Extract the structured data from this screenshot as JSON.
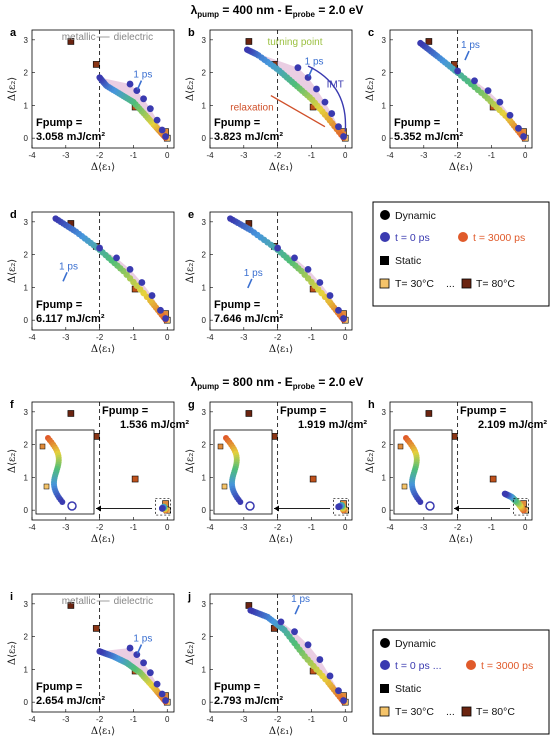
{
  "sections": [
    {
      "title": "λpump = 400 nm - Eprobe =  2.0 eV",
      "title_parts": {
        "lam": "λ",
        "lam_sub": "pump",
        "lam_val": " = 400 nm - E",
        "e_sub": "probe",
        "e_val": " =  2.0 eV"
      }
    },
    {
      "title": "λpump = 800 nm - Eprobe =  2.0 eV",
      "title_parts": {
        "lam": "λ",
        "lam_sub": "pump",
        "lam_val": " = 800 nm - E",
        "e_sub": "probe",
        "e_val": " =  2.0 eV"
      }
    }
  ],
  "axes": {
    "xlabel": "Δ⟨ε₁⟩",
    "ylabel": "Δ⟨ε₂⟩",
    "xlim": [
      -4,
      0.2
    ],
    "ylim": [
      -0.3,
      3.3
    ],
    "xticks": [
      "-4",
      "-3",
      "-2",
      "-1",
      "0"
    ],
    "yticks": [
      "0",
      "1",
      "2",
      "3"
    ],
    "boundary_x": -2
  },
  "legend": {
    "dynamic": "Dynamic",
    "dyn_start": "t = 0 ps",
    "dyn_end": "t = 3000 ps",
    "static": "Static",
    "stat_start": "T= 30°C",
    "stat_end": "T= 80°C",
    "ellipsis": "...",
    "colors": {
      "dyn_start": "#3a3ab0",
      "dyn_end": "#e05a2a",
      "stat_start": "#f5c46a",
      "stat_end": "#6b2410",
      "envelope": "#d9a5cc"
    }
  },
  "annotations": {
    "metallic": "metallic",
    "dielectric": "dielectric",
    "one_ps": "1 ps",
    "turning_point": "turning point",
    "imt": "IMT",
    "relaxation": "relaxation"
  },
  "chart_data": [
    {
      "panel": "a",
      "type": "scatter",
      "fluence_label": "Fpump =",
      "fluence_value": "3.058 mJ/cm²",
      "dynamic_path": [
        [
          -0.05,
          0.02
        ],
        [
          -0.3,
          0.3
        ],
        [
          -0.6,
          0.65
        ],
        [
          -1.0,
          1.1
        ],
        [
          -1.4,
          1.35
        ],
        [
          -1.8,
          1.6
        ],
        [
          -2.0,
          1.85
        ]
      ],
      "dynamic_start": [
        [
          -0.05,
          0.05
        ],
        [
          -0.15,
          0.25
        ],
        [
          -0.3,
          0.55
        ],
        [
          -0.5,
          0.9
        ],
        [
          -0.7,
          1.2
        ],
        [
          -0.9,
          1.45
        ],
        [
          -1.1,
          1.65
        ]
      ]
    },
    {
      "panel": "b",
      "type": "scatter",
      "fluence_label": "Fpump =",
      "fluence_value": "3.823 mJ/cm²",
      "dynamic_path": [
        [
          -0.05,
          0.02
        ],
        [
          -0.5,
          0.6
        ],
        [
          -1.0,
          1.2
        ],
        [
          -1.5,
          1.65
        ],
        [
          -2.0,
          2.1
        ],
        [
          -2.6,
          2.55
        ],
        [
          -2.9,
          2.7
        ]
      ],
      "dynamic_start": [
        [
          -0.05,
          0.05
        ],
        [
          -0.2,
          0.35
        ],
        [
          -0.4,
          0.75
        ],
        [
          -0.6,
          1.1
        ],
        [
          -0.85,
          1.5
        ],
        [
          -1.1,
          1.85
        ],
        [
          -1.4,
          2.15
        ]
      ]
    },
    {
      "panel": "c",
      "type": "scatter",
      "fluence_label": "Fpump =",
      "fluence_value": "5.352 mJ/cm²",
      "dynamic_path": [
        [
          -0.05,
          0.02
        ],
        [
          -0.5,
          0.6
        ],
        [
          -1.2,
          1.3
        ],
        [
          -2.0,
          2.0
        ],
        [
          -2.6,
          2.5
        ],
        [
          -3.1,
          2.9
        ]
      ],
      "dynamic_start": [
        [
          -0.05,
          0.05
        ],
        [
          -0.2,
          0.3
        ],
        [
          -0.45,
          0.7
        ],
        [
          -0.75,
          1.1
        ],
        [
          -1.1,
          1.45
        ],
        [
          -1.5,
          1.75
        ],
        [
          -2.0,
          2.05
        ]
      ]
    },
    {
      "panel": "d",
      "type": "scatter",
      "fluence_label": "Fpump =",
      "fluence_value": "6.117 mJ/cm²",
      "dynamic_path": [
        [
          -0.05,
          0.02
        ],
        [
          -0.5,
          0.6
        ],
        [
          -1.3,
          1.5
        ],
        [
          -2.0,
          2.15
        ],
        [
          -2.7,
          2.7
        ],
        [
          -3.3,
          3.1
        ]
      ],
      "dynamic_start": [
        [
          -0.05,
          0.05
        ],
        [
          -0.2,
          0.3
        ],
        [
          -0.45,
          0.75
        ],
        [
          -0.75,
          1.15
        ],
        [
          -1.1,
          1.55
        ],
        [
          -1.5,
          1.9
        ],
        [
          -2.0,
          2.2
        ]
      ]
    },
    {
      "panel": "e",
      "type": "scatter",
      "fluence_label": "Fpump =",
      "fluence_value": "7.646 mJ/cm²",
      "dynamic_path": [
        [
          -0.05,
          0.02
        ],
        [
          -0.5,
          0.6
        ],
        [
          -1.3,
          1.5
        ],
        [
          -2.0,
          2.15
        ],
        [
          -2.8,
          2.75
        ],
        [
          -3.4,
          3.1
        ]
      ],
      "dynamic_start": [
        [
          -0.05,
          0.05
        ],
        [
          -0.2,
          0.3
        ],
        [
          -0.45,
          0.75
        ],
        [
          -0.75,
          1.15
        ],
        [
          -1.1,
          1.55
        ],
        [
          -1.5,
          1.9
        ],
        [
          -2.0,
          2.2
        ]
      ]
    },
    {
      "panel": "f",
      "type": "scatter",
      "fluence_label": "Fpump =",
      "fluence_value": "1.536 mJ/cm²",
      "dynamic_path": [
        [
          -0.05,
          0.0
        ],
        [
          -0.1,
          0.1
        ],
        [
          -0.15,
          0.05
        ]
      ],
      "dynamic_start": []
    },
    {
      "panel": "g",
      "type": "scatter",
      "fluence_label": "Fpump =",
      "fluence_value": "1.919 mJ/cm²",
      "dynamic_path": [
        [
          -0.05,
          0.0
        ],
        [
          -0.1,
          0.15
        ],
        [
          -0.2,
          0.1
        ]
      ],
      "dynamic_start": []
    },
    {
      "panel": "h",
      "type": "scatter",
      "fluence_label": "Fpump =",
      "fluence_value": "2.109 mJ/cm²",
      "dynamic_path": [
        [
          -0.05,
          0.0
        ],
        [
          -0.2,
          0.2
        ],
        [
          -0.4,
          0.4
        ],
        [
          -0.6,
          0.5
        ]
      ],
      "dynamic_start": []
    },
    {
      "panel": "i",
      "type": "scatter",
      "fluence_label": "Fpump =",
      "fluence_value": "2.654 mJ/cm²",
      "dynamic_path": [
        [
          -0.05,
          0.02
        ],
        [
          -0.4,
          0.45
        ],
        [
          -0.8,
          0.9
        ],
        [
          -1.2,
          1.2
        ],
        [
          -1.6,
          1.4
        ],
        [
          -2.0,
          1.55
        ]
      ],
      "dynamic_start": [
        [
          -0.05,
          0.05
        ],
        [
          -0.15,
          0.25
        ],
        [
          -0.3,
          0.55
        ],
        [
          -0.5,
          0.9
        ],
        [
          -0.7,
          1.2
        ],
        [
          -0.9,
          1.45
        ],
        [
          -1.1,
          1.65
        ]
      ]
    },
    {
      "panel": "j",
      "type": "scatter",
      "fluence_label": "Fpump =",
      "fluence_value": "2.793 mJ/cm²",
      "dynamic_path": [
        [
          -0.05,
          0.02
        ],
        [
          -0.5,
          0.6
        ],
        [
          -1.2,
          1.4
        ],
        [
          -1.8,
          2.2
        ],
        [
          -2.3,
          2.6
        ],
        [
          -2.8,
          2.8
        ]
      ],
      "dynamic_start": [
        [
          -0.05,
          0.05
        ],
        [
          -0.2,
          0.35
        ],
        [
          -0.45,
          0.8
        ],
        [
          -0.75,
          1.3
        ],
        [
          -1.1,
          1.75
        ],
        [
          -1.5,
          2.15
        ],
        [
          -1.9,
          2.45
        ]
      ]
    }
  ],
  "static_points": [
    [
      -2.85,
      2.95
    ],
    [
      -2.1,
      2.25
    ],
    [
      -0.95,
      0.95
    ],
    [
      -0.05,
      0.2
    ],
    [
      0.0,
      0.0
    ]
  ]
}
